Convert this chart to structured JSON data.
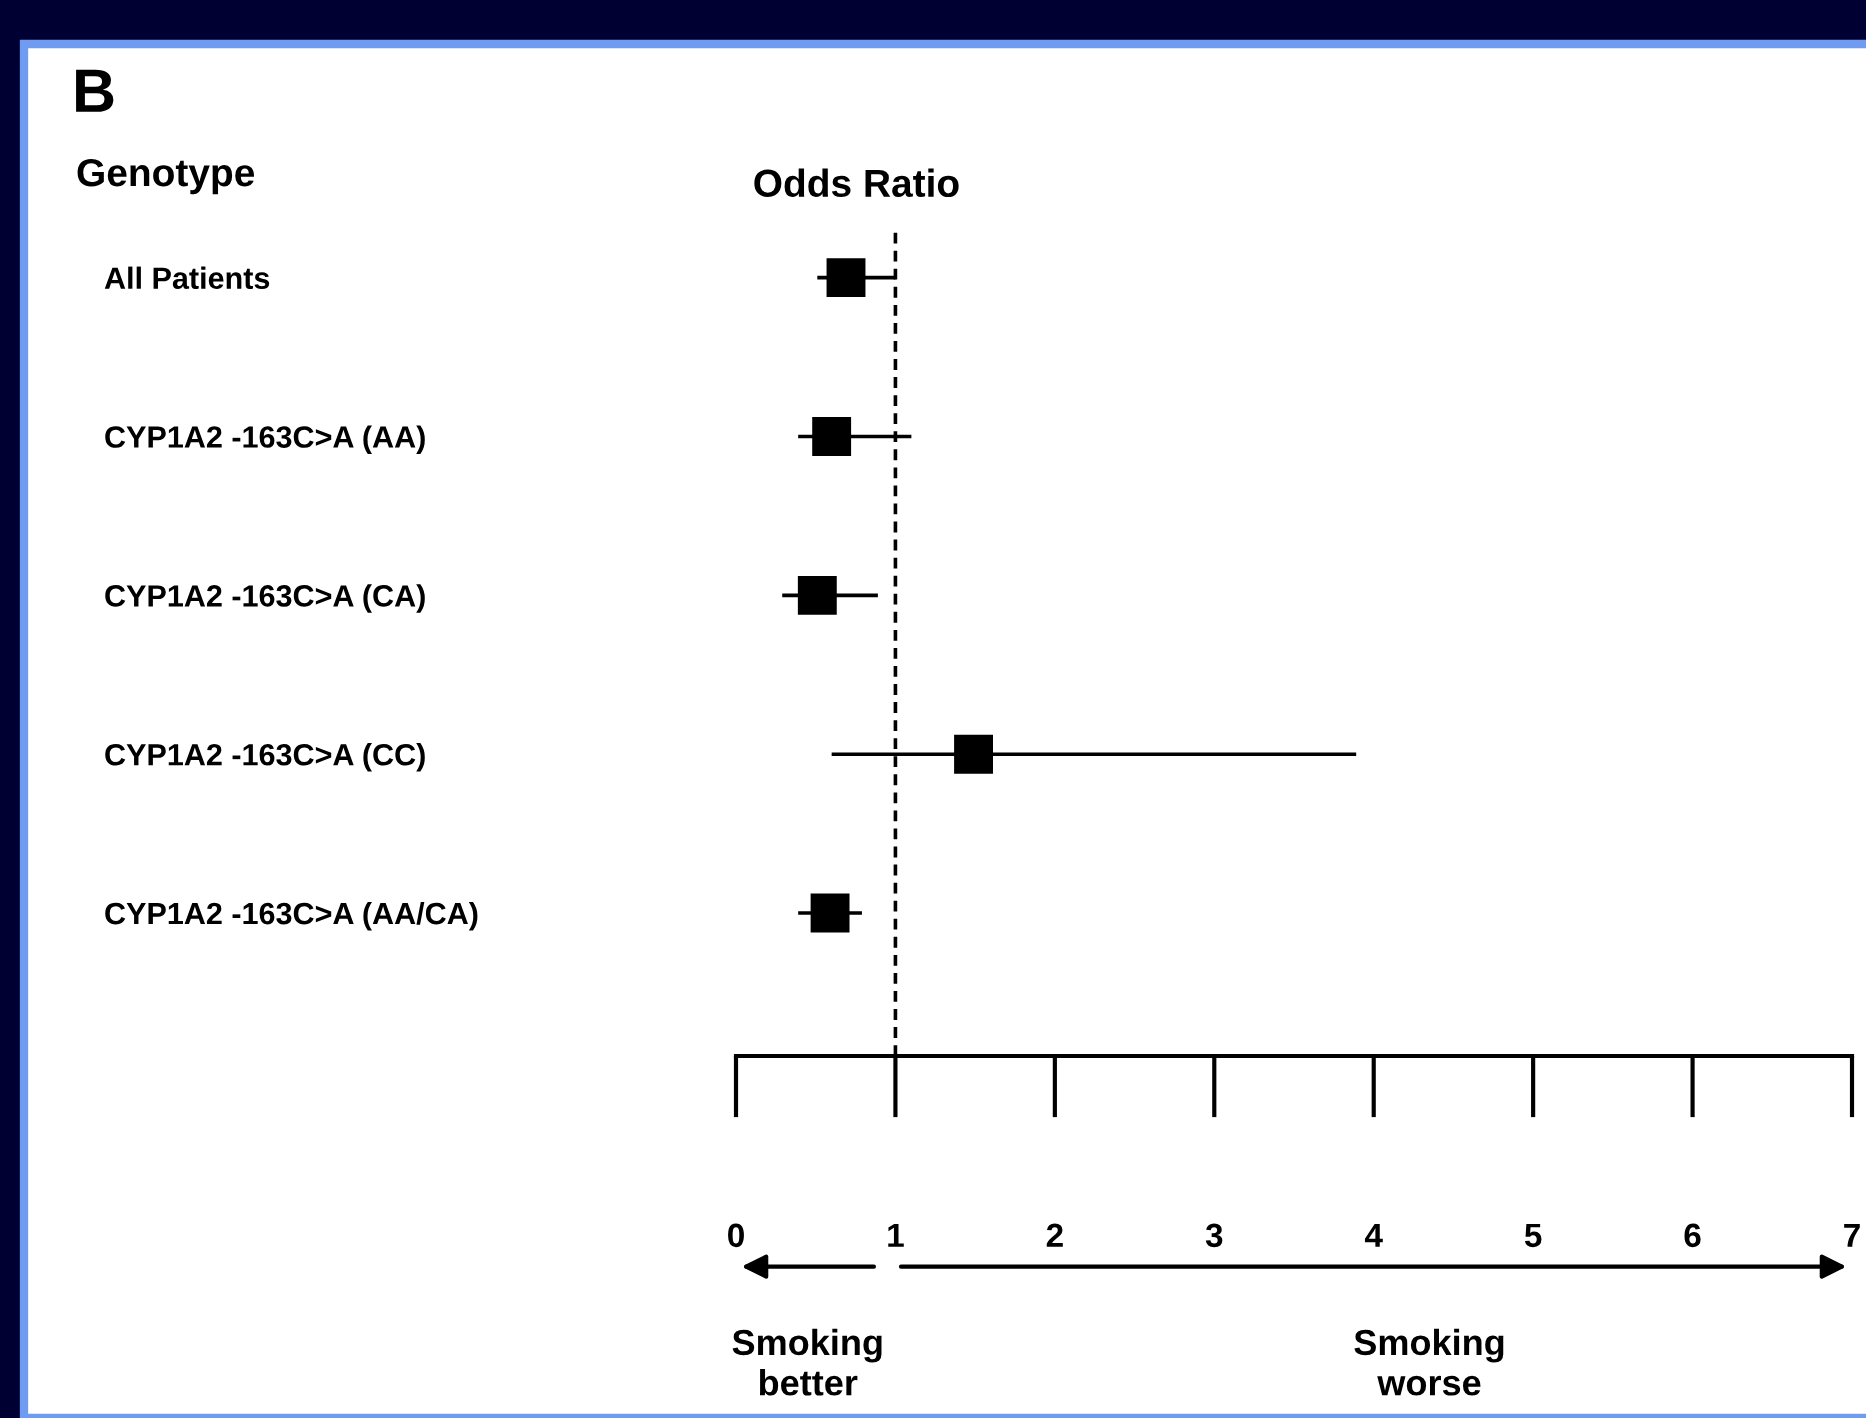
{
  "chart_data": {
    "type": "scatter",
    "orientation": "horizontal",
    "title": "Odds Ratio",
    "ylabel": "Genotype",
    "categories": [
      "All Patients",
      "CYP1A2 -163C>A (AA)",
      "CYP1A2 -163C>A (CA)",
      "CYP1A2 -163C>A (CC)",
      "CYP1A2 -163C>A (AA/CA)"
    ],
    "values": [
      0.69,
      0.6,
      0.51,
      1.49,
      0.59
    ],
    "errors": [
      [
        0.51,
        1.0
      ],
      [
        0.39,
        1.1
      ],
      [
        0.29,
        0.89
      ],
      [
        0.6,
        3.89
      ],
      [
        0.39,
        0.79
      ]
    ],
    "color": "#000000",
    "marker": "square",
    "xlim": [
      0,
      7
    ],
    "xticks": [
      0,
      1,
      2,
      3,
      4,
      5,
      6,
      7
    ],
    "ref_lines": [
      {
        "axis": "x",
        "value": 1,
        "line_style": "dashed",
        "color": "#000000"
      }
    ],
    "annotations": [
      "B",
      "Smoking better",
      "Smoking worse"
    ],
    "grid": false,
    "legend": false
  }
}
